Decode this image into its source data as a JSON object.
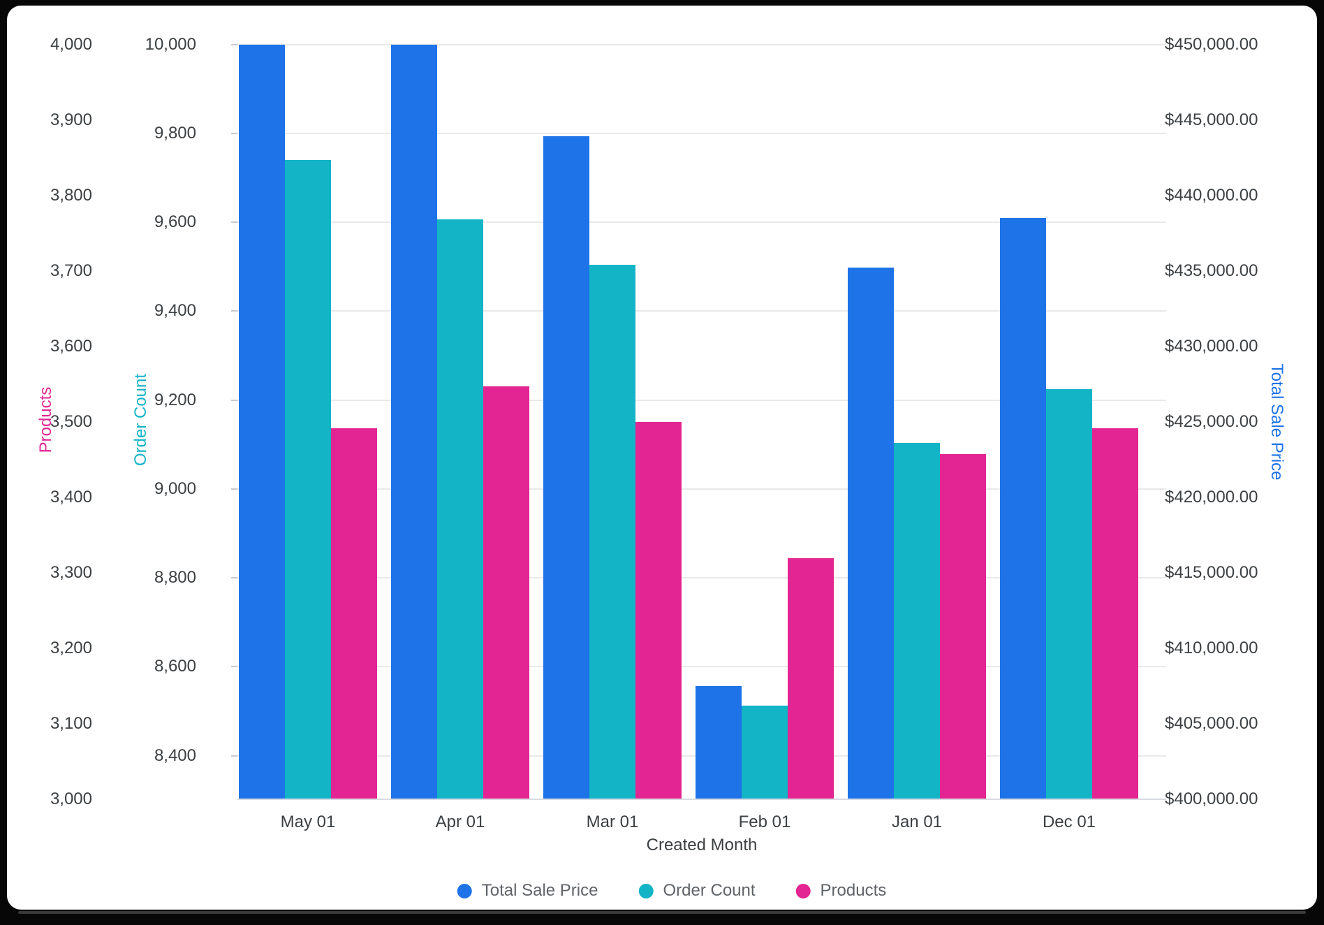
{
  "frame": {
    "background": "#070708",
    "card_background": "#ffffff"
  },
  "chart_data": {
    "type": "bar",
    "title": "",
    "categories": [
      "May 01",
      "Apr 01",
      "Mar 01",
      "Feb 01",
      "Jan 01",
      "Dec 01"
    ],
    "xlabel": "Created Month",
    "grid": "horizontal gridlines on Order Count ticks",
    "legend_position": "bottom",
    "series": [
      {
        "name": "Total Sale Price",
        "axis": "total_sale_price",
        "color": "#1e73e8",
        "values": [
          450000,
          450000,
          443900,
          407500,
          435200,
          438500
        ]
      },
      {
        "name": "Order Count",
        "axis": "order_count",
        "color": "#12b4c6",
        "values": [
          9740,
          9606,
          9504,
          8512,
          9104,
          9225
        ]
      },
      {
        "name": "Products",
        "axis": "products",
        "color": "#e22592",
        "values": [
          3491,
          3547,
          3500,
          3319,
          3457,
          3491
        ]
      }
    ],
    "axes": {
      "products": {
        "title": "Products",
        "title_color": "#e22592",
        "side": "outer-left",
        "min": 3000,
        "max": 4000,
        "step": 100,
        "tick_labels": [
          "4,000",
          "3,900",
          "3,800",
          "3,700",
          "3,600",
          "3,500",
          "3,400",
          "3,300",
          "3,200",
          "3,100",
          "3,000"
        ]
      },
      "order_count": {
        "title": "Order Count",
        "title_color": "#12b4c6",
        "side": "inner-left",
        "min": 8400,
        "max": 10000,
        "step": 200,
        "tick_labels": [
          "10,000",
          "9,800",
          "9,600",
          "9,400",
          "9,200",
          "9,000",
          "8,800",
          "8,600",
          "8,400"
        ]
      },
      "total_sale_price": {
        "title": "Total Sale Price",
        "title_color": "#1e73e8",
        "side": "right",
        "min": 400000,
        "max": 450000,
        "step": 5000,
        "tick_labels": [
          "$450,000.00",
          "$445,000.00",
          "$440,000.00",
          "$435,000.00",
          "$430,000.00",
          "$425,000.00",
          "$420,000.00",
          "$415,000.00",
          "$410,000.00",
          "$405,000.00",
          "$400,000.00"
        ]
      }
    },
    "legend": {
      "items": [
        "Total Sale Price",
        "Order Count",
        "Products"
      ]
    }
  }
}
